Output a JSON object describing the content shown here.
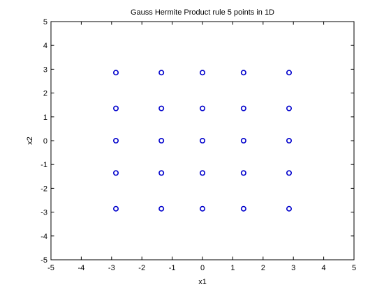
{
  "chart_data": {
    "type": "scatter",
    "title": "Gauss Hermite Product rule 5 points in 1D",
    "xlabel": "x1",
    "ylabel": "x2",
    "xlim": [
      -5,
      5
    ],
    "ylim": [
      -5,
      5
    ],
    "xticks": [
      "-5",
      "-4",
      "-3",
      "-2",
      "-1",
      "0",
      "1",
      "2",
      "3",
      "4",
      "5"
    ],
    "yticks": [
      "-5",
      "-4",
      "-3",
      "-2",
      "-1",
      "0",
      "1",
      "2",
      "3",
      "4",
      "5"
    ],
    "grid": false,
    "legend": "none",
    "marker": "circle-open",
    "marker_color": "#0000cc",
    "series": [
      {
        "points": [
          [
            -2.857,
            -2.857
          ],
          [
            -1.356,
            -2.857
          ],
          [
            0,
            -2.857
          ],
          [
            1.356,
            -2.857
          ],
          [
            2.857,
            -2.857
          ],
          [
            -2.857,
            -1.356
          ],
          [
            -1.356,
            -1.356
          ],
          [
            0,
            -1.356
          ],
          [
            1.356,
            -1.356
          ],
          [
            2.857,
            -1.356
          ],
          [
            -2.857,
            0
          ],
          [
            -1.356,
            0
          ],
          [
            0,
            0
          ],
          [
            1.356,
            0
          ],
          [
            2.857,
            0
          ],
          [
            -2.857,
            1.356
          ],
          [
            -1.356,
            1.356
          ],
          [
            0,
            1.356
          ],
          [
            1.356,
            1.356
          ],
          [
            2.857,
            1.356
          ],
          [
            -2.857,
            2.857
          ],
          [
            -1.356,
            2.857
          ],
          [
            0,
            2.857
          ],
          [
            1.356,
            2.857
          ],
          [
            2.857,
            2.857
          ]
        ]
      }
    ]
  }
}
